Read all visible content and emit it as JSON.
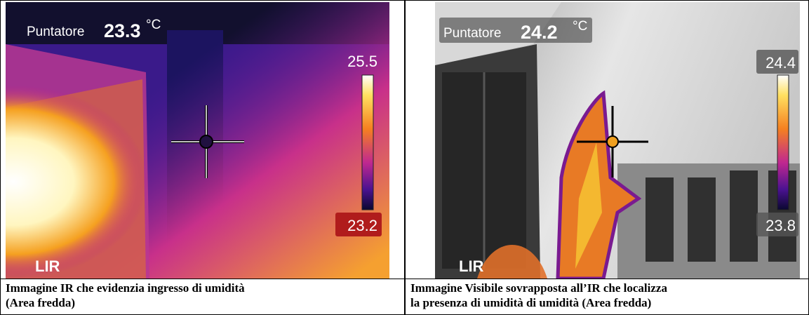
{
  "panels": [
    {
      "pointer_label": "Puntatore",
      "pointer_value": 23.3,
      "unit": "°C",
      "scale_max": 25.5,
      "scale_min": 23.2,
      "logo": "LIR",
      "caption": [
        "Immagine IR che evidenzia ingresso di umidità",
        "(Area fredda)"
      ]
    },
    {
      "pointer_label": "Puntatore",
      "pointer_value": 24.2,
      "unit": "°C",
      "scale_max": 24.4,
      "scale_min": 23.8,
      "logo": "LIR",
      "caption": [
        "Immagine Visibile sovrapposta all’IR che localizza",
        "la presenza di umidità di umidità (Area fredda)"
      ]
    }
  ]
}
